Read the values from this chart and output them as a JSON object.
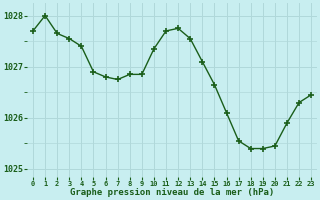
{
  "x": [
    0,
    1,
    2,
    3,
    4,
    5,
    6,
    7,
    8,
    9,
    10,
    11,
    12,
    13,
    14,
    15,
    16,
    17,
    18,
    19,
    20,
    21,
    22,
    23
  ],
  "y": [
    1027.7,
    1028.0,
    1027.65,
    1027.55,
    1027.4,
    1026.9,
    1026.8,
    1026.75,
    1026.85,
    1026.85,
    1027.35,
    1027.7,
    1027.75,
    1027.55,
    1027.1,
    1026.65,
    1026.1,
    1025.55,
    1025.4,
    1025.4,
    1025.45,
    1025.9,
    1026.3,
    1026.45
  ],
  "line_color": "#1a5e1a",
  "marker_color": "#1a5e1a",
  "bg_color": "#c8eef0",
  "grid_color": "#b0d8da",
  "xlabel": "Graphe pression niveau de la mer (hPa)",
  "xlabel_color": "#1a5e1a",
  "tick_color": "#1a5e1a",
  "ylim": [
    1024.85,
    1028.25
  ],
  "yticks": [
    1025,
    1026,
    1027,
    1028
  ],
  "xtick_labels": [
    "0",
    "1",
    "2",
    "3",
    "4",
    "5",
    "6",
    "7",
    "8",
    "9",
    "10",
    "11",
    "12",
    "13",
    "14",
    "15",
    "16",
    "17",
    "18",
    "19",
    "20",
    "21",
    "22",
    "23"
  ],
  "marker_size": 4,
  "line_width": 1.0
}
